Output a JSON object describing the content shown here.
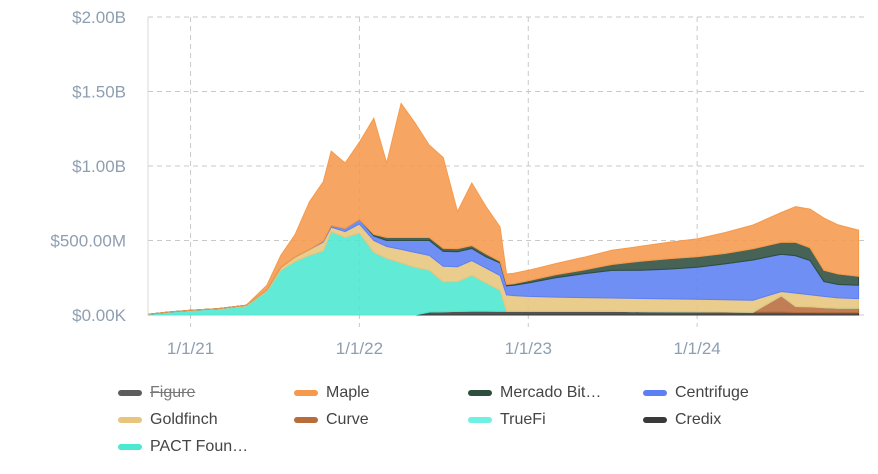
{
  "chart_data": {
    "type": "area",
    "stacked": true,
    "title": "",
    "xlabel": "",
    "ylabel": "",
    "x_ticks": [
      "1/1/21",
      "1/1/22",
      "1/1/23",
      "1/1/24"
    ],
    "y_ticks": [
      "$0.00K",
      "$500.00M",
      "$1.00B",
      "$1.50B",
      "$2.00B"
    ],
    "ylim": [
      0,
      2000
    ],
    "y_unit": "$M",
    "xlim": [
      "2020-10-01",
      "2024-12-31"
    ],
    "grid": true,
    "legend_position": "bottom",
    "x": [
      "2020-10-01",
      "2020-11-15",
      "2021-01-01",
      "2021-03-01",
      "2021-05-01",
      "2021-06-15",
      "2021-07-15",
      "2021-08-15",
      "2021-09-15",
      "2021-10-15",
      "2021-11-01",
      "2021-12-01",
      "2022-01-01",
      "2022-02-01",
      "2022-03-01",
      "2022-04-01",
      "2022-05-01",
      "2022-06-01",
      "2022-07-01",
      "2022-08-01",
      "2022-09-01",
      "2022-10-01",
      "2022-11-01",
      "2022-11-15",
      "2022-12-01",
      "2023-01-01",
      "2023-03-01",
      "2023-05-01",
      "2023-07-01",
      "2023-09-01",
      "2023-11-01",
      "2024-01-01",
      "2024-03-01",
      "2024-05-01",
      "2024-07-01",
      "2024-08-01",
      "2024-09-01",
      "2024-10-01",
      "2024-11-01",
      "2024-12-15"
    ],
    "series": [
      {
        "name": "Figure",
        "color": "#5d5d5d",
        "hidden": true,
        "values": [
          0,
          0,
          0,
          0,
          0,
          0,
          0,
          0,
          0,
          0,
          0,
          0,
          0,
          0,
          0,
          0,
          0,
          0,
          0,
          0,
          0,
          0,
          0,
          0,
          0,
          0,
          0,
          0,
          0,
          0,
          0,
          0,
          0,
          0,
          0,
          0,
          0,
          0,
          0,
          0
        ]
      },
      {
        "name": "Credix",
        "color": "#3a3a3a",
        "values": [
          0,
          0,
          0,
          0,
          0,
          0,
          0,
          0,
          0,
          0,
          0,
          0,
          0,
          0,
          0,
          0,
          0,
          20,
          22,
          24,
          26,
          26,
          25,
          25,
          25,
          25,
          25,
          25,
          24,
          23,
          22,
          21,
          20,
          19,
          18,
          17,
          16,
          15,
          15,
          15
        ]
      },
      {
        "name": "Curve",
        "color": "#b86b3b",
        "values": [
          0,
          0,
          0,
          0,
          0,
          0,
          0,
          0,
          0,
          0,
          0,
          0,
          0,
          0,
          0,
          0,
          0,
          0,
          0,
          0,
          0,
          0,
          0,
          0,
          0,
          0,
          0,
          0,
          0,
          0,
          0,
          0,
          0,
          0,
          110,
          40,
          40,
          35,
          30,
          30
        ]
      },
      {
        "name": "TrueFi",
        "color": "#6ef0e2",
        "values": [
          0,
          0,
          0,
          0,
          0,
          0,
          0,
          0,
          0,
          0,
          0,
          0,
          0,
          0,
          0,
          0,
          0,
          0,
          0,
          0,
          0,
          0,
          0,
          0,
          0,
          0,
          0,
          0,
          0,
          0,
          0,
          0,
          0,
          0,
          0,
          0,
          0,
          0,
          0,
          0
        ]
      },
      {
        "name": "PACT Foun…",
        "color": "#4be8d2",
        "values": [
          5,
          20,
          30,
          40,
          60,
          160,
          300,
          360,
          400,
          430,
          560,
          520,
          550,
          420,
          380,
          350,
          320,
          280,
          200,
          200,
          240,
          190,
          140,
          0,
          0,
          0,
          0,
          0,
          0,
          0,
          0,
          0,
          0,
          0,
          0,
          0,
          0,
          0,
          0,
          0
        ]
      },
      {
        "name": "Goldfinch",
        "color": "#e7c57c",
        "values": [
          0,
          0,
          2,
          3,
          5,
          10,
          20,
          30,
          40,
          60,
          30,
          40,
          60,
          80,
          80,
          90,
          100,
          100,
          105,
          100,
          100,
          100,
          100,
          110,
          105,
          100,
          95,
          92,
          90,
          88,
          86,
          85,
          83,
          80,
          30,
          90,
          80,
          75,
          70,
          65
        ]
      },
      {
        "name": "Centrifuge",
        "color": "#5c7ff3",
        "values": [
          0,
          0,
          0,
          0,
          0,
          0,
          0,
          0,
          0,
          5,
          10,
          20,
          30,
          30,
          40,
          60,
          80,
          100,
          100,
          100,
          80,
          75,
          85,
          60,
          70,
          90,
          130,
          160,
          185,
          190,
          200,
          215,
          240,
          270,
          250,
          250,
          230,
          100,
          90,
          90
        ]
      },
      {
        "name": "Mercado Bit…",
        "color": "#2d4d3e",
        "values": [
          0,
          0,
          0,
          0,
          0,
          0,
          0,
          0,
          0,
          0,
          0,
          0,
          0,
          10,
          20,
          20,
          20,
          20,
          20,
          20,
          20,
          20,
          10,
          10,
          10,
          15,
          20,
          25,
          40,
          60,
          70,
          70,
          70,
          75,
          80,
          90,
          85,
          75,
          70,
          60
        ]
      },
      {
        "name": "Maple",
        "color": "#f59a4c",
        "values": [
          0,
          0,
          0,
          0,
          0,
          30,
          80,
          150,
          320,
          400,
          500,
          440,
          520,
          780,
          500,
          900,
          770,
          620,
          610,
          250,
          420,
          320,
          230,
          70,
          70,
          70,
          75,
          85,
          95,
          100,
          110,
          120,
          140,
          160,
          200,
          240,
          260,
          350,
          330,
          310
        ]
      }
    ]
  },
  "legend": [
    {
      "label": "Figure",
      "color": "#5d5d5d",
      "hidden": true
    },
    {
      "label": "Maple",
      "color": "#f59a4c",
      "hidden": false
    },
    {
      "label": "Mercado Bit…",
      "color": "#2d4d3e",
      "hidden": false
    },
    {
      "label": "Centrifuge",
      "color": "#5c7ff3",
      "hidden": false
    },
    {
      "label": "Goldfinch",
      "color": "#e7c57c",
      "hidden": false
    },
    {
      "label": "Curve",
      "color": "#b86b3b",
      "hidden": false
    },
    {
      "label": "TrueFi",
      "color": "#6ef0e2",
      "hidden": false
    },
    {
      "label": "Credix",
      "color": "#3a3a3a",
      "hidden": false
    },
    {
      "label": "PACT Foun…",
      "color": "#4be8d2",
      "hidden": false
    }
  ]
}
